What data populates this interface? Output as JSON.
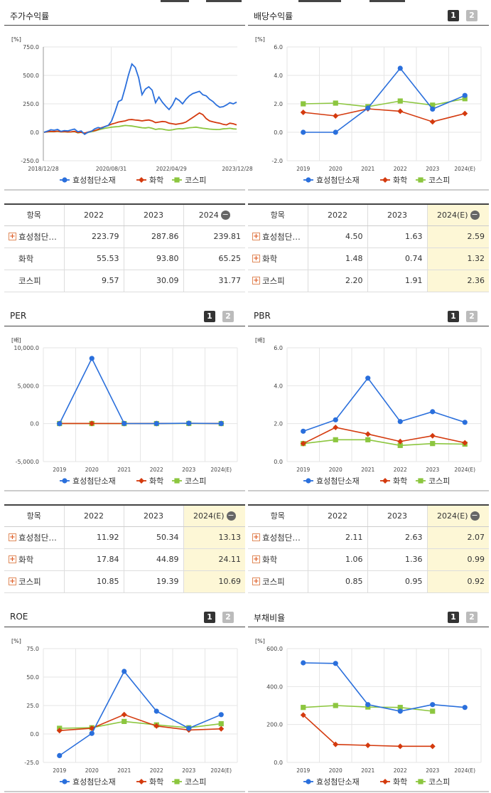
{
  "colors": {
    "s1": "#2a6fdc",
    "s2": "#d43a0e",
    "s3": "#8cc63f",
    "grid": "#e5e5e5",
    "axis": "#999"
  },
  "panels": {
    "stock": {
      "title": "주가수익률",
      "unit": "[%]"
    },
    "dividend": {
      "title": "배당수익률",
      "unit": "[%]",
      "btn1": "1",
      "btn2": "2"
    },
    "per": {
      "title": "PER",
      "unit": "[배]",
      "btn1": "1",
      "btn2": "2"
    },
    "pbr": {
      "title": "PBR",
      "unit": "[배]",
      "btn1": "1",
      "btn2": "2"
    },
    "roe": {
      "title": "ROE",
      "unit": "[%]",
      "btn1": "1",
      "btn2": "2"
    },
    "debt": {
      "title": "부채비율",
      "unit": "[%]",
      "btn1": "1",
      "btn2": "2"
    }
  },
  "legend": [
    "효성첨단소재",
    "화학",
    "코스피"
  ],
  "tables": {
    "stock": {
      "headers": [
        "항목",
        "2022",
        "2023",
        "2024"
      ],
      "rows": [
        {
          "name": "효성첨단…",
          "plus": true,
          "values": [
            "223.79",
            "287.86",
            "239.81"
          ]
        },
        {
          "name": "화학",
          "plus": false,
          "values": [
            "55.53",
            "93.80",
            "65.25"
          ]
        },
        {
          "name": "코스피",
          "plus": false,
          "values": [
            "9.57",
            "30.09",
            "31.77"
          ]
        }
      ]
    },
    "dividend": {
      "headers": [
        "항목",
        "2022",
        "2023",
        "2024(E)"
      ],
      "rows": [
        {
          "name": "효성첨단…",
          "plus": true,
          "values": [
            "4.50",
            "1.63",
            "2.59"
          ]
        },
        {
          "name": "화학",
          "plus": true,
          "values": [
            "1.48",
            "0.74",
            "1.32"
          ]
        },
        {
          "name": "코스피",
          "plus": true,
          "values": [
            "2.20",
            "1.91",
            "2.36"
          ]
        }
      ]
    },
    "per": {
      "headers": [
        "항목",
        "2022",
        "2023",
        "2024(E)"
      ],
      "rows": [
        {
          "name": "효성첨단…",
          "plus": true,
          "values": [
            "11.92",
            "50.34",
            "13.13"
          ]
        },
        {
          "name": "화학",
          "plus": true,
          "values": [
            "17.84",
            "44.89",
            "24.11"
          ]
        },
        {
          "name": "코스피",
          "plus": true,
          "values": [
            "10.85",
            "19.39",
            "10.69"
          ]
        }
      ]
    },
    "pbr": {
      "headers": [
        "항목",
        "2022",
        "2023",
        "2024(E)"
      ],
      "rows": [
        {
          "name": "효성첨단…",
          "plus": true,
          "values": [
            "2.11",
            "2.63",
            "2.07"
          ]
        },
        {
          "name": "화학",
          "plus": true,
          "values": [
            "1.06",
            "1.36",
            "0.99"
          ]
        },
        {
          "name": "코스피",
          "plus": true,
          "values": [
            "0.85",
            "0.95",
            "0.92"
          ]
        }
      ]
    }
  },
  "chart_data": [
    {
      "id": "stock",
      "type": "line",
      "x_ticks": [
        "2018/12/28",
        "2020/08/31",
        "2022/04/29",
        "2023/12/28"
      ],
      "y_ticks": [
        "750.0",
        "500.0",
        "250.0",
        "0.0",
        "-250.0"
      ],
      "ylim": [
        -250,
        750
      ],
      "series": [
        {
          "name": "효성첨단소재",
          "values": [
            0,
            10,
            22,
            18,
            25,
            8,
            15,
            12,
            20,
            28,
            5,
            12,
            -18,
            0,
            8,
            30,
            42,
            35,
            50,
            60,
            100,
            180,
            270,
            285,
            390,
            505,
            600,
            570,
            480,
            330,
            380,
            400,
            370,
            260,
            310,
            265,
            230,
            200,
            240,
            300,
            280,
            250,
            290,
            320,
            340,
            350,
            360,
            330,
            320,
            290,
            270,
            240,
            220,
            225,
            240,
            260,
            250,
            265
          ]
        },
        {
          "name": "화학",
          "values": [
            0,
            5,
            8,
            6,
            10,
            4,
            6,
            3,
            4,
            8,
            -2,
            0,
            -8,
            2,
            10,
            15,
            25,
            40,
            50,
            60,
            72,
            80,
            90,
            95,
            100,
            110,
            112,
            108,
            105,
            100,
            105,
            108,
            100,
            85,
            90,
            95,
            92,
            80,
            75,
            70,
            75,
            80,
            90,
            110,
            130,
            150,
            170,
            155,
            120,
            100,
            92,
            85,
            80,
            70,
            65,
            80,
            75,
            65
          ]
        },
        {
          "name": "코스피",
          "values": [
            0,
            4,
            6,
            5,
            8,
            3,
            5,
            2,
            4,
            6,
            -5,
            0,
            -12,
            -2,
            5,
            12,
            20,
            28,
            35,
            40,
            45,
            48,
            50,
            55,
            60,
            58,
            55,
            50,
            45,
            40,
            38,
            42,
            35,
            25,
            30,
            28,
            22,
            18,
            22,
            28,
            32,
            30,
            35,
            40,
            42,
            45,
            40,
            35,
            32,
            28,
            26,
            24,
            25,
            30,
            32,
            35,
            30,
            28
          ]
        }
      ]
    },
    {
      "id": "dividend",
      "type": "line",
      "categories": [
        "2019",
        "2020",
        "2021",
        "2022",
        "2023",
        "2024(E)"
      ],
      "y_ticks": [
        "6.0",
        "4.0",
        "2.0",
        "0.0",
        "-2.0"
      ],
      "ylim": [
        -2,
        6
      ],
      "series": [
        {
          "name": "효성첨단소재",
          "values": [
            0.0,
            0.0,
            1.7,
            4.5,
            1.63,
            2.59
          ]
        },
        {
          "name": "화학",
          "values": [
            1.4,
            1.15,
            1.65,
            1.48,
            0.74,
            1.32
          ]
        },
        {
          "name": "코스피",
          "values": [
            2.0,
            2.05,
            1.8,
            2.2,
            1.91,
            2.36
          ]
        }
      ]
    },
    {
      "id": "per",
      "type": "line",
      "categories": [
        "2019",
        "2020",
        "2021",
        "2022",
        "2023",
        "2024(E)"
      ],
      "y_ticks": [
        "10,000.0",
        "5,000.0",
        "0.0",
        "-5,000.0"
      ],
      "ylim": [
        -5000,
        10000
      ],
      "series": [
        {
          "name": "효성첨단소재",
          "values": [
            0,
            8600,
            20,
            11.92,
            50.34,
            13.13
          ]
        },
        {
          "name": "화학",
          "values": [
            20,
            25,
            15,
            17.84,
            44.89,
            24.11
          ]
        },
        {
          "name": "코스피",
          "values": [
            12,
            15,
            11,
            10.85,
            19.39,
            10.69
          ]
        }
      ]
    },
    {
      "id": "pbr",
      "type": "line",
      "categories": [
        "2019",
        "2020",
        "2021",
        "2022",
        "2023",
        "2024(E)"
      ],
      "y_ticks": [
        "6.0",
        "4.0",
        "2.0",
        "0.0"
      ],
      "ylim": [
        0,
        6
      ],
      "series": [
        {
          "name": "효성첨단소재",
          "values": [
            1.6,
            2.2,
            4.4,
            2.11,
            2.63,
            2.07
          ]
        },
        {
          "name": "화학",
          "values": [
            0.95,
            1.8,
            1.45,
            1.06,
            1.36,
            0.99
          ]
        },
        {
          "name": "코스피",
          "values": [
            0.95,
            1.15,
            1.15,
            0.85,
            0.95,
            0.92
          ]
        }
      ]
    },
    {
      "id": "roe",
      "type": "line",
      "categories": [
        "2019",
        "2020",
        "2021",
        "2022",
        "2023",
        "2024(E)"
      ],
      "y_ticks": [
        "75.0",
        "50.0",
        "25.0",
        "0.0",
        "-25.0"
      ],
      "ylim": [
        -25,
        75
      ],
      "series": [
        {
          "name": "효성첨단소재",
          "values": [
            -19,
            0.5,
            55,
            20,
            5,
            17
          ]
        },
        {
          "name": "화학",
          "values": [
            3,
            5,
            17,
            7,
            3.5,
            4.5
          ]
        },
        {
          "name": "코스피",
          "values": [
            5,
            5.5,
            11,
            8,
            5.5,
            9
          ]
        }
      ]
    },
    {
      "id": "debt",
      "type": "line",
      "categories": [
        "2019",
        "2020",
        "2021",
        "2022",
        "2023",
        "2024(E)"
      ],
      "y_ticks": [
        "600.0",
        "400.0",
        "200.0",
        "0.0"
      ],
      "ylim": [
        0,
        600
      ],
      "series": [
        {
          "name": "효성첨단소재",
          "values": [
            525,
            522,
            305,
            270,
            305,
            290
          ]
        },
        {
          "name": "화학",
          "values": [
            250,
            95,
            90,
            85,
            85,
            null
          ]
        },
        {
          "name": "코스피",
          "values": [
            290,
            300,
            292,
            290,
            270,
            null
          ]
        }
      ]
    }
  ]
}
